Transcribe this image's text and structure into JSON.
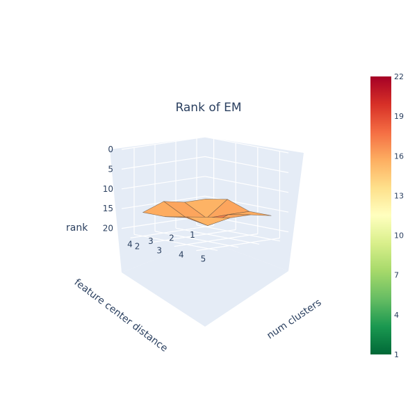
{
  "chart_data": {
    "type": "surface",
    "title": "Rank of EM",
    "x_axis": {
      "label": "num clusters",
      "ticks": [
        "2",
        "3",
        "4",
        "5"
      ],
      "values": [
        2,
        3,
        4,
        5
      ]
    },
    "y_axis": {
      "label": "feature center distance",
      "ticks": [
        "1",
        "2",
        "3",
        "4"
      ],
      "values": [
        1,
        2,
        3,
        4
      ]
    },
    "z_axis": {
      "label": "rank",
      "ticks": [
        "0",
        "5",
        "10",
        "15",
        "20"
      ],
      "range": [
        0,
        22
      ],
      "reversed": true
    },
    "z_values": [
      [
        15,
        14,
        16,
        16
      ],
      [
        15,
        18,
        16,
        15
      ],
      [
        14,
        17,
        18,
        15
      ],
      [
        16,
        16,
        15,
        14
      ]
    ],
    "colorbar": {
      "min": 1,
      "max": 22,
      "ticks": [
        "1",
        "4",
        "7",
        "10",
        "13",
        "16",
        "19",
        "22"
      ],
      "colorscale": "RdYlGn (reversed)"
    },
    "colors": {
      "bg": "#e5ecf6",
      "grid": "#ffffff",
      "text": "#2a3f5f"
    }
  }
}
